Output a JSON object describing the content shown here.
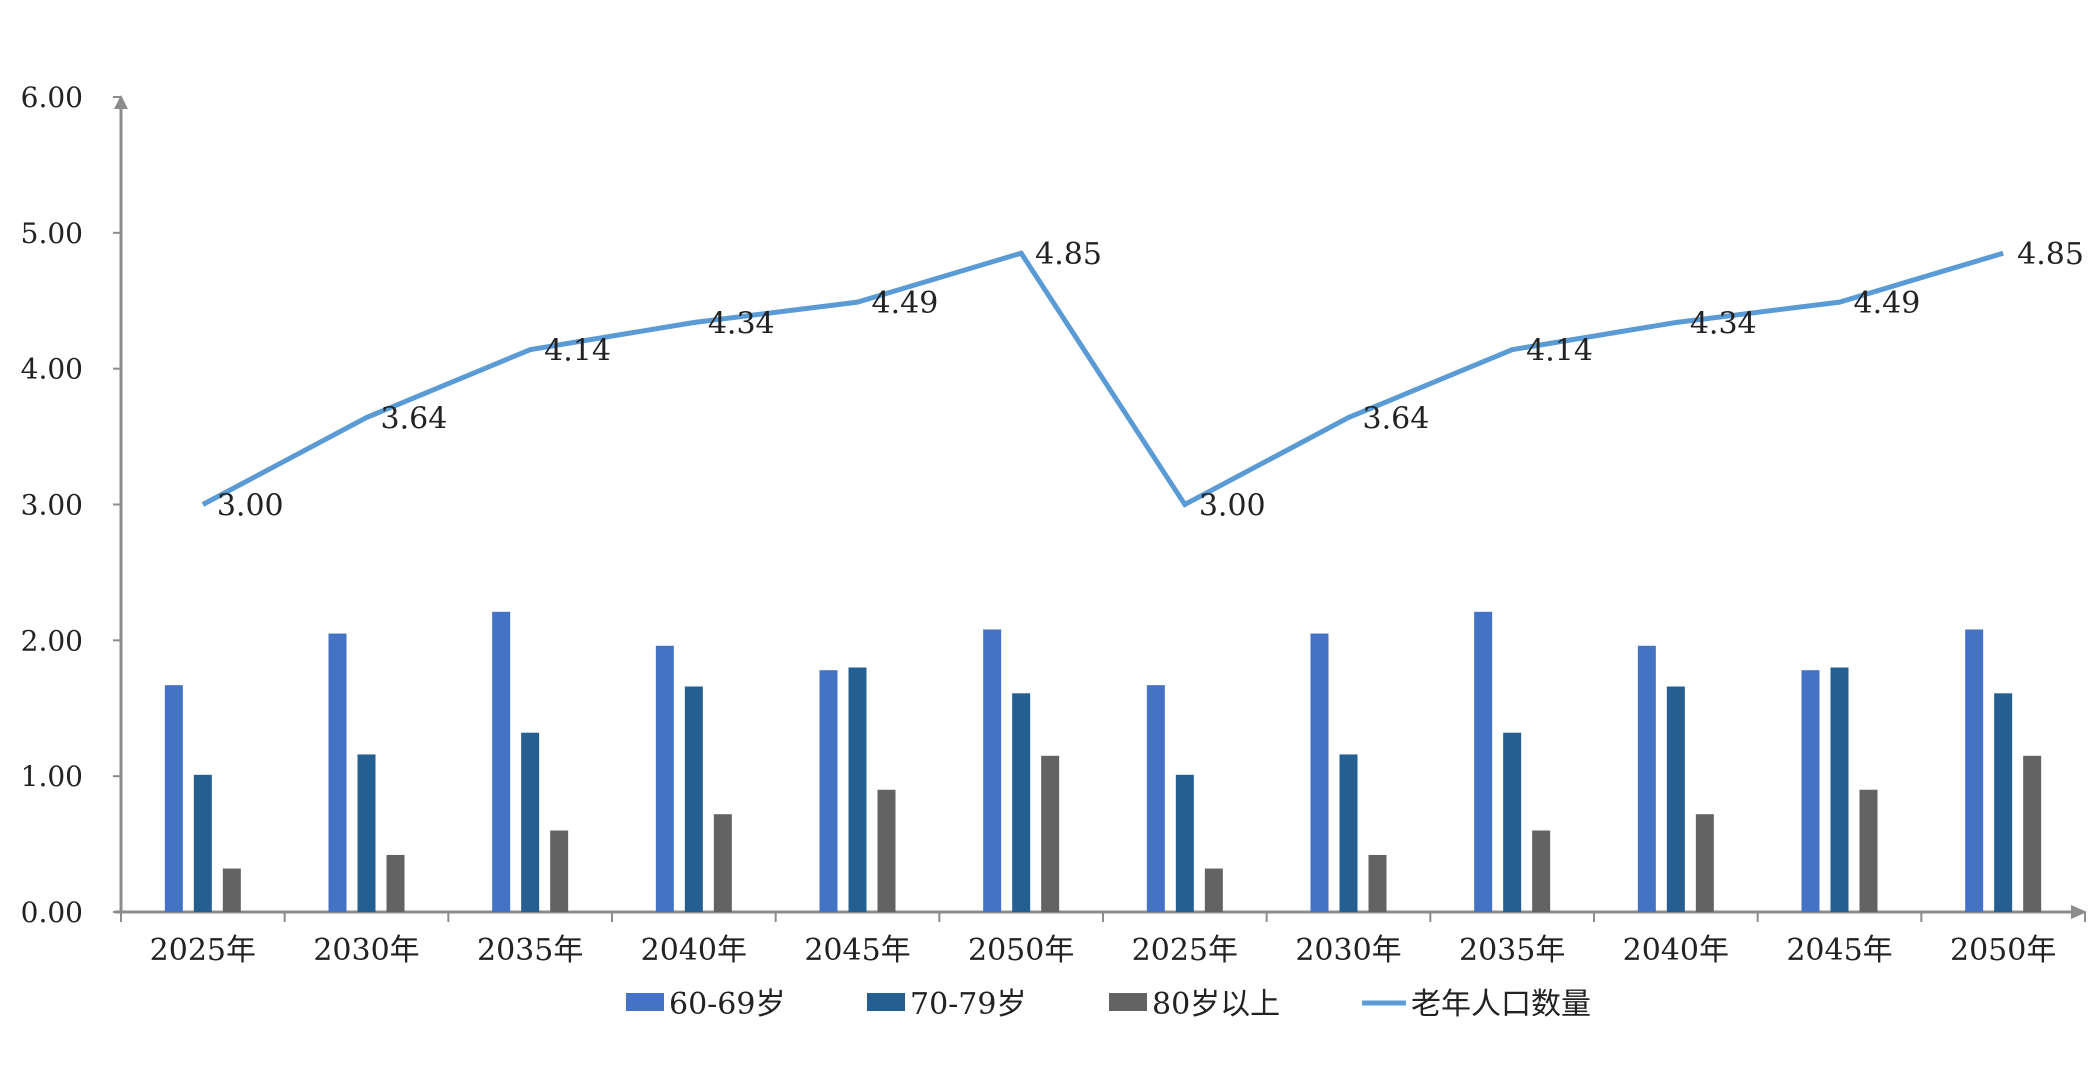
{
  "chart_data": {
    "type": "bar",
    "categories": [
      "2025年",
      "2030年",
      "2035年",
      "2040年",
      "2045年",
      "2050年",
      "2025年",
      "2030年",
      "2035年",
      "2040年",
      "2045年",
      "2050年"
    ],
    "series": [
      {
        "name": "60-69岁",
        "type": "bar",
        "color": "#4472c4",
        "values": [
          1.67,
          2.05,
          2.21,
          1.96,
          1.78,
          2.08,
          1.67,
          2.05,
          2.21,
          1.96,
          1.78,
          2.08
        ]
      },
      {
        "name": "70-79岁",
        "type": "bar",
        "color": "#255e91",
        "values": [
          1.01,
          1.16,
          1.32,
          1.66,
          1.8,
          1.61,
          1.01,
          1.16,
          1.32,
          1.66,
          1.8,
          1.61
        ]
      },
      {
        "name": "80岁以上",
        "type": "bar",
        "color": "#636363",
        "values": [
          0.32,
          0.42,
          0.6,
          0.72,
          0.9,
          1.15,
          0.32,
          0.42,
          0.6,
          0.72,
          0.9,
          1.15
        ]
      },
      {
        "name": "老年人口数量",
        "type": "line",
        "color": "#5b9bd5",
        "values": [
          3.0,
          3.64,
          4.14,
          4.34,
          4.49,
          4.85,
          3.0,
          3.64,
          4.14,
          4.34,
          4.49,
          4.85
        ]
      }
    ],
    "line_labels": [
      "3.00",
      "3.64",
      "4.14",
      "4.34",
      "4.49",
      "4.85",
      "3.00",
      "3.64",
      "4.14",
      "4.34",
      "4.49",
      "4.85"
    ],
    "yticks": [
      "0.00",
      "1.00",
      "2.00",
      "3.00",
      "4.00",
      "5.00",
      "6.00"
    ],
    "ylim": [
      0,
      6
    ],
    "grid": false,
    "legend_position": "bottom",
    "title": "",
    "xlabel": "",
    "ylabel": ""
  }
}
